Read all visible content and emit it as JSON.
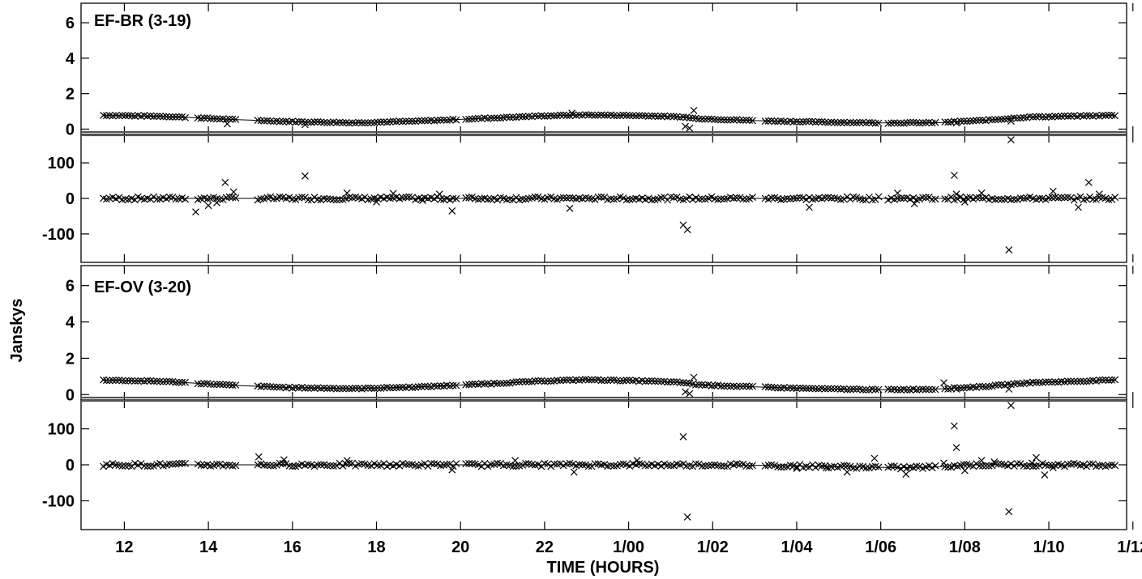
{
  "chart_data": {
    "type": "scatter",
    "xlabel": "TIME (HOURS)",
    "ylabel": "Janskys",
    "x_unit": "hours",
    "xlim": [
      10.97,
      35.85
    ],
    "x_ticks": [
      {
        "value": 12,
        "label": "12"
      },
      {
        "value": 14,
        "label": "14"
      },
      {
        "value": 16,
        "label": "16"
      },
      {
        "value": 18,
        "label": "18"
      },
      {
        "value": 20,
        "label": "20"
      },
      {
        "value": 22,
        "label": "22"
      },
      {
        "value": 24,
        "label": "1/00"
      },
      {
        "value": 26,
        "label": "1/02"
      },
      {
        "value": 28,
        "label": "1/04"
      },
      {
        "value": 30,
        "label": "1/06"
      },
      {
        "value": 32,
        "label": "1/08"
      },
      {
        "value": 34,
        "label": "1/10"
      },
      {
        "value": 36,
        "label": "1/12"
      }
    ],
    "amp_axis": {
      "ylim": [
        -0.3,
        7.1
      ],
      "ticks": [
        0,
        2,
        4,
        6
      ],
      "tick_labels": [
        "0",
        "2",
        "4",
        "6"
      ],
      "quantity": "amplitude (Jy)"
    },
    "phase_axis": {
      "ylim": [
        -180,
        180
      ],
      "ticks": [
        -100,
        0,
        100
      ],
      "tick_labels": [
        "-100",
        "0",
        "100"
      ],
      "quantity": "phase (degrees)"
    },
    "baselines": [
      {
        "label": "EF-BR (3-19)",
        "scan_gaps": [
          [
            13.45,
            13.7
          ],
          [
            14.7,
            15.1
          ],
          [
            19.9,
            20.05
          ],
          [
            27.0,
            27.2
          ],
          [
            29.95,
            30.1
          ],
          [
            31.3,
            31.5
          ]
        ],
        "amplitude_model": [
          [
            11.5,
            0.78
          ],
          [
            13.0,
            0.72
          ],
          [
            14.5,
            0.55
          ],
          [
            16.0,
            0.42
          ],
          [
            17.5,
            0.36
          ],
          [
            19.0,
            0.45
          ],
          [
            20.5,
            0.6
          ],
          [
            22.0,
            0.75
          ],
          [
            23.0,
            0.8
          ],
          [
            24.5,
            0.75
          ],
          [
            25.3,
            0.68
          ],
          [
            25.6,
            0.6
          ],
          [
            27.0,
            0.48
          ],
          [
            28.5,
            0.4
          ],
          [
            30.0,
            0.35
          ],
          [
            31.3,
            0.36
          ],
          [
            32.5,
            0.5
          ],
          [
            33.5,
            0.68
          ],
          [
            35.6,
            0.78
          ]
        ],
        "amplitude_outliers": [
          [
            14.45,
            0.3
          ],
          [
            16.3,
            0.25
          ],
          [
            22.65,
            0.9
          ],
          [
            25.35,
            0.15
          ],
          [
            25.45,
            0.05
          ],
          [
            25.55,
            1.05
          ],
          [
            31.8,
            0.35
          ],
          [
            33.1,
            -0.6
          ],
          [
            33.1,
            0.45
          ]
        ],
        "phase_model": [
          [
            11.5,
            0
          ],
          [
            35.6,
            0
          ]
        ],
        "phase_outliers": [
          [
            13.7,
            -38
          ],
          [
            14.0,
            -20
          ],
          [
            14.2,
            -12
          ],
          [
            14.4,
            45
          ],
          [
            14.6,
            18
          ],
          [
            16.3,
            63
          ],
          [
            17.3,
            15
          ],
          [
            18.0,
            -10
          ],
          [
            18.4,
            14
          ],
          [
            19.1,
            -6
          ],
          [
            19.5,
            12
          ],
          [
            19.8,
            -35
          ],
          [
            22.6,
            -28
          ],
          [
            25.3,
            -75
          ],
          [
            25.4,
            -88
          ],
          [
            28.3,
            -25
          ],
          [
            30.4,
            15
          ],
          [
            30.8,
            -15
          ],
          [
            31.75,
            65
          ],
          [
            31.8,
            12
          ],
          [
            32.0,
            -10
          ],
          [
            32.4,
            15
          ],
          [
            33.05,
            -145
          ],
          [
            34.1,
            20
          ],
          [
            34.7,
            -25
          ],
          [
            34.95,
            45
          ],
          [
            35.2,
            12
          ]
        ]
      },
      {
        "label": "EF-OV (3-20)",
        "scan_gaps": [
          [
            13.45,
            13.7
          ],
          [
            14.7,
            15.1
          ],
          [
            19.9,
            20.05
          ],
          [
            27.0,
            27.2
          ],
          [
            29.95,
            30.1
          ],
          [
            31.3,
            31.5
          ]
        ],
        "amplitude_model": [
          [
            11.5,
            0.8
          ],
          [
            13.0,
            0.72
          ],
          [
            14.5,
            0.52
          ],
          [
            16.0,
            0.38
          ],
          [
            17.5,
            0.33
          ],
          [
            19.0,
            0.42
          ],
          [
            20.5,
            0.58
          ],
          [
            22.0,
            0.75
          ],
          [
            23.0,
            0.82
          ],
          [
            24.5,
            0.74
          ],
          [
            25.3,
            0.66
          ],
          [
            25.6,
            0.55
          ],
          [
            27.0,
            0.42
          ],
          [
            28.5,
            0.32
          ],
          [
            30.0,
            0.27
          ],
          [
            31.3,
            0.3
          ],
          [
            32.5,
            0.45
          ],
          [
            33.5,
            0.65
          ],
          [
            35.6,
            0.8
          ]
        ],
        "amplitude_outliers": [
          [
            25.35,
            0.15
          ],
          [
            25.45,
            0.05
          ],
          [
            25.55,
            0.95
          ],
          [
            31.5,
            0.65
          ],
          [
            31.8,
            0.3
          ],
          [
            33.05,
            0.3
          ],
          [
            33.1,
            -0.6
          ]
        ],
        "phase_model": [
          [
            11.5,
            0
          ],
          [
            26.0,
            0
          ],
          [
            28.0,
            -3
          ],
          [
            30.5,
            -8
          ],
          [
            31.3,
            -6
          ],
          [
            32.0,
            0
          ],
          [
            35.6,
            0
          ]
        ],
        "phase_outliers": [
          [
            15.2,
            22
          ],
          [
            15.8,
            14
          ],
          [
            17.3,
            12
          ],
          [
            19.8,
            -14
          ],
          [
            21.3,
            12
          ],
          [
            22.7,
            -20
          ],
          [
            24.2,
            12
          ],
          [
            25.3,
            78
          ],
          [
            25.4,
            -145
          ],
          [
            28.0,
            -10
          ],
          [
            28.7,
            -8
          ],
          [
            29.2,
            -20
          ],
          [
            29.85,
            18
          ],
          [
            30.6,
            -26
          ],
          [
            31.5,
            5
          ],
          [
            31.75,
            108
          ],
          [
            31.8,
            48
          ],
          [
            32.0,
            -16
          ],
          [
            32.4,
            12
          ],
          [
            32.7,
            8
          ],
          [
            33.05,
            -130
          ],
          [
            33.6,
            5
          ],
          [
            33.7,
            20
          ],
          [
            33.9,
            -28
          ],
          [
            34.1,
            -8
          ]
        ]
      }
    ]
  }
}
